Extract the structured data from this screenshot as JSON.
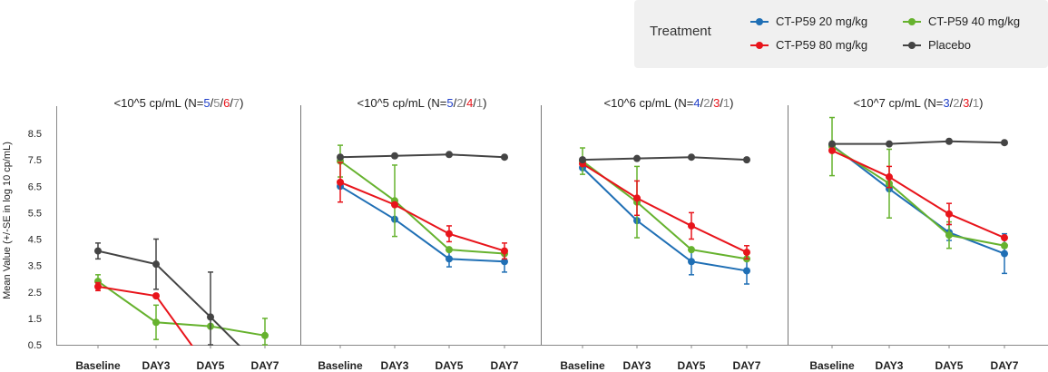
{
  "legend": {
    "title": "Treatment",
    "items": [
      {
        "label": "CT-P59 20 mg/kg",
        "color": "#1f6fb5"
      },
      {
        "label": "CT-P59 40 mg/kg",
        "color": "#66b22e"
      },
      {
        "label": "CT-P59 80 mg/kg",
        "color": "#e8141b"
      },
      {
        "label": "Placebo",
        "color": "#444444"
      }
    ]
  },
  "chart_data": {
    "type": "line",
    "ylabel": "Mean Value (+/-SE in log 10 cp/mL)",
    "ylim": [
      0.5,
      8.5
    ],
    "yticks": [
      "8.5",
      "7.5",
      "6.5",
      "5.5",
      "4.5",
      "3.5",
      "2.5",
      "1.5",
      "0.5"
    ],
    "categories": [
      "Baseline",
      "DAY3",
      "DAY5",
      "DAY7"
    ],
    "series_colors": {
      "CT-P59 20 mg/kg": "#1f6fb5",
      "CT-P59 40 mg/kg": "#66b22e",
      "CT-P59 80 mg/kg": "#e8141b",
      "Placebo": "#444444"
    },
    "panels": [
      {
        "title_parts": [
          {
            "text": "<10^5 cp/mL (N=",
            "color": "#222222"
          },
          {
            "text": "5",
            "color": "#1f3fc8"
          },
          {
            "text": "/",
            "color": "#222222"
          },
          {
            "text": "5",
            "color": "#888888"
          },
          {
            "text": "/",
            "color": "#222222"
          },
          {
            "text": "6",
            "color": "#e8141b"
          },
          {
            "text": "/",
            "color": "#222222"
          },
          {
            "text": "7",
            "color": "#888888"
          },
          {
            "text": ")",
            "color": "#222222"
          }
        ],
        "series": [
          {
            "name": "CT-P59 40 mg/kg",
            "values": [
              2.9,
              1.35,
              1.2,
              0.85
            ],
            "err": [
              0.25,
              0.65,
              0.0,
              0.65
            ]
          },
          {
            "name": "CT-P59 80 mg/kg",
            "values": [
              2.7,
              2.35,
              -0.5,
              null
            ],
            "err": [
              0.15,
              0.0,
              0.0,
              0.0
            ]
          },
          {
            "name": "Placebo",
            "values": [
              4.05,
              3.55,
              1.55,
              -0.5
            ],
            "err": [
              0.3,
              0.95,
              1.7,
              0.0
            ]
          }
        ]
      },
      {
        "title_parts": [
          {
            "text": "<10^5 cp/mL (N=",
            "color": "#222222"
          },
          {
            "text": "5",
            "color": "#1f3fc8"
          },
          {
            "text": "/",
            "color": "#222222"
          },
          {
            "text": "2",
            "color": "#888888"
          },
          {
            "text": "/",
            "color": "#222222"
          },
          {
            "text": "4",
            "color": "#e8141b"
          },
          {
            "text": "/",
            "color": "#222222"
          },
          {
            "text": "1",
            "color": "#888888"
          },
          {
            "text": ")",
            "color": "#222222"
          }
        ],
        "series": [
          {
            "name": "CT-P59 20 mg/kg",
            "values": [
              6.5,
              5.25,
              3.75,
              3.65
            ],
            "err": [
              0.0,
              0.0,
              0.3,
              0.4
            ]
          },
          {
            "name": "CT-P59 40 mg/kg",
            "values": [
              7.45,
              5.95,
              4.1,
              3.95
            ],
            "err": [
              0.6,
              1.35,
              0.0,
              0.0
            ]
          },
          {
            "name": "CT-P59 80 mg/kg",
            "values": [
              6.65,
              5.8,
              4.7,
              4.05
            ],
            "err": [
              0.75,
              0.0,
              0.3,
              0.3
            ]
          },
          {
            "name": "Placebo",
            "values": [
              7.6,
              7.65,
              7.7,
              7.6
            ],
            "err": [
              0.0,
              0.0,
              0.0,
              0.0
            ]
          }
        ]
      },
      {
        "title_parts": [
          {
            "text": "<10^6 cp/mL (N=",
            "color": "#222222"
          },
          {
            "text": "4",
            "color": "#1f3fc8"
          },
          {
            "text": "/",
            "color": "#222222"
          },
          {
            "text": "2",
            "color": "#888888"
          },
          {
            "text": "/",
            "color": "#222222"
          },
          {
            "text": "3",
            "color": "#e8141b"
          },
          {
            "text": "/",
            "color": "#222222"
          },
          {
            "text": "1",
            "color": "#888888"
          },
          {
            "text": ")",
            "color": "#222222"
          }
        ],
        "series": [
          {
            "name": "CT-P59 20 mg/kg",
            "values": [
              7.2,
              5.2,
              3.65,
              3.3
            ],
            "err": [
              0.0,
              0.0,
              0.5,
              0.5
            ]
          },
          {
            "name": "CT-P59 40 mg/kg",
            "values": [
              7.45,
              5.9,
              4.1,
              3.75
            ],
            "err": [
              0.5,
              1.35,
              0.0,
              0.0
            ]
          },
          {
            "name": "CT-P59 80 mg/kg",
            "values": [
              7.35,
              6.05,
              5.0,
              4.0
            ],
            "err": [
              0.0,
              0.65,
              0.5,
              0.25
            ]
          },
          {
            "name": "Placebo",
            "values": [
              7.5,
              7.55,
              7.6,
              7.5
            ],
            "err": [
              0.0,
              0.0,
              0.0,
              0.0
            ]
          }
        ]
      },
      {
        "title_parts": [
          {
            "text": "<10^7 cp/mL (N=",
            "color": "#222222"
          },
          {
            "text": "3",
            "color": "#1f3fc8"
          },
          {
            "text": "/",
            "color": "#222222"
          },
          {
            "text": "2",
            "color": "#888888"
          },
          {
            "text": "/",
            "color": "#222222"
          },
          {
            "text": "3",
            "color": "#e8141b"
          },
          {
            "text": "/",
            "color": "#222222"
          },
          {
            "text": "1",
            "color": "#888888"
          },
          {
            "text": ")",
            "color": "#222222"
          }
        ],
        "series": [
          {
            "name": "CT-P59 20 mg/kg",
            "values": [
              8.05,
              6.4,
              4.75,
              3.95
            ],
            "err": [
              0.0,
              0.0,
              0.3,
              0.75
            ]
          },
          {
            "name": "CT-P59 40 mg/kg",
            "values": [
              8.0,
              6.6,
              4.65,
              4.25
            ],
            "err": [
              1.1,
              1.3,
              0.5,
              0.0
            ]
          },
          {
            "name": "CT-P59 80 mg/kg",
            "values": [
              7.85,
              6.85,
              5.45,
              4.55
            ],
            "err": [
              0.0,
              0.4,
              0.4,
              0.0
            ]
          },
          {
            "name": "Placebo",
            "values": [
              8.1,
              8.1,
              8.2,
              8.15
            ],
            "err": [
              0.0,
              0.0,
              0.0,
              0.0
            ]
          }
        ]
      }
    ]
  }
}
